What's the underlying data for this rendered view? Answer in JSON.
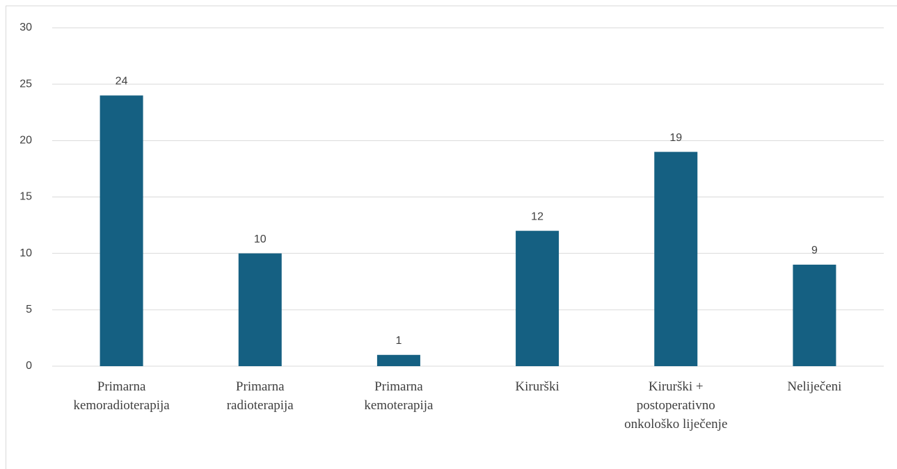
{
  "chart_data": {
    "type": "bar",
    "categories": [
      "Primarna kemoradioterapija",
      "Primarna radioterapija",
      "Primarna kemoterapija",
      "Kirurški",
      "Kirurški + postoperativno onkološko liječenje",
      "Neliječeni"
    ],
    "values": [
      24,
      10,
      1,
      12,
      19,
      9
    ],
    "color": "#156082",
    "ylim": [
      0,
      30
    ],
    "yticks": [
      0,
      5,
      10,
      15,
      20,
      25,
      30
    ],
    "grid": true
  }
}
